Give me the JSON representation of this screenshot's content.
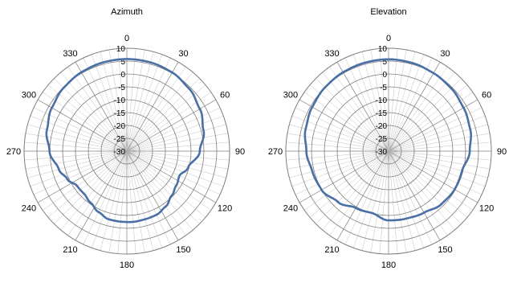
{
  "chart_data": [
    {
      "type": "polar-line",
      "title": "Azimuth",
      "angle_labels": [
        "0",
        "30",
        "60",
        "90",
        "120",
        "150",
        "180",
        "210",
        "240",
        "270",
        "300",
        "330"
      ],
      "radial_tick_labels": [
        "10",
        "5",
        "0",
        "-5",
        "-10",
        "-15",
        "-20",
        "-25",
        "-30"
      ],
      "radial_range": [
        -30,
        10
      ],
      "radial_ticks": [
        10,
        5,
        0,
        -5,
        -10,
        -15,
        -20,
        -25,
        -30
      ],
      "angular_grid_step_deg": 5,
      "grid": true,
      "series": [
        {
          "color": "#4a6fa5",
          "angles_deg": [
            0,
            15,
            30,
            45,
            60,
            75,
            90,
            105,
            115,
            125,
            135,
            145,
            155,
            165,
            175,
            185,
            195,
            205,
            215,
            225,
            235,
            245,
            255,
            270,
            285,
            300,
            315,
            330,
            345,
            360
          ],
          "values": [
            5.8,
            5.7,
            5.3,
            4.3,
            2.8,
            0.9,
            -1.6,
            -5.3,
            -7.4,
            -6.6,
            -5.4,
            -3.7,
            -2.7,
            -2.6,
            -2.4,
            -2.5,
            -2.6,
            -3.9,
            -5.5,
            -6.5,
            -6.4,
            -4.4,
            -2.6,
            0.1,
            2.2,
            3.7,
            4.8,
            5.4,
            5.7,
            5.8
          ]
        }
      ]
    },
    {
      "type": "polar-line",
      "title": "Elevation",
      "angle_labels": [
        "0",
        "30",
        "60",
        "90",
        "120",
        "150",
        "180",
        "210",
        "240",
        "270",
        "300",
        "330"
      ],
      "radial_tick_labels": [
        "10",
        "5",
        "0",
        "-5",
        "-10",
        "-15",
        "-20",
        "-25",
        "-30"
      ],
      "radial_range": [
        -30,
        10
      ],
      "radial_ticks": [
        10,
        5,
        0,
        -5,
        -10,
        -15,
        -20,
        -25,
        -30
      ],
      "angular_grid_step_deg": 5,
      "grid": true,
      "series": [
        {
          "color": "#4a6fa5",
          "angles_deg": [
            0,
            15,
            30,
            45,
            60,
            75,
            90,
            105,
            120,
            135,
            150,
            165,
            180,
            195,
            210,
            225,
            240,
            255,
            270,
            285,
            300,
            315,
            330,
            345,
            360
          ],
          "values": [
            5.7,
            5.5,
            5.0,
            4.5,
            3.7,
            2.9,
            1.6,
            -0.4,
            -0.3,
            -0.9,
            -2.4,
            -2.9,
            -3.1,
            -5.1,
            -4.5,
            -2.1,
            0.1,
            0.7,
            2.0,
            3.4,
            4.3,
            5.0,
            5.4,
            5.6,
            5.7
          ]
        }
      ]
    }
  ],
  "colors": {
    "grid": "#c0c0c0",
    "grid_dark": "#7f7f7f",
    "series": "#4a6fa5"
  }
}
